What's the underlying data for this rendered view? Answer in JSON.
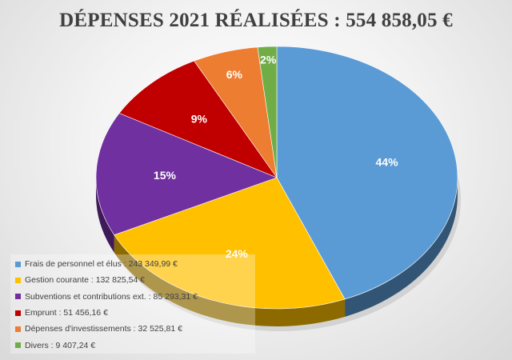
{
  "chart_data": {
    "type": "pie",
    "title": "DÉPENSES 2021 RÉALISÉES : 554 858,05 €",
    "legend_position": "bottom-left",
    "slices": [
      {
        "label": "Frais de personnel et élus : 243 349,99 €",
        "value": 243349.99,
        "percent_label": "44%",
        "color": "#5b9bd5"
      },
      {
        "label": "Gestion courante : 132 825,54 €",
        "value": 132825.54,
        "percent_label": "24%",
        "color": "#ffc000"
      },
      {
        "label": "Subventions et contributions ext. : 85 293,31 €",
        "value": 85293.31,
        "percent_label": "15%",
        "color": "#7030a0"
      },
      {
        "label": "Emprunt : 51 456,16 €",
        "value": 51456.16,
        "percent_label": "9%",
        "color": "#c00000"
      },
      {
        "label": "Dépenses d'investissements : 32 525,81 €",
        "value": 32525.81,
        "percent_label": "6%",
        "color": "#ed7d31"
      },
      {
        "label": "Divers : 9 407,24 €",
        "value": 9407.24,
        "percent_label": "2%",
        "color": "#70ad47"
      }
    ]
  }
}
